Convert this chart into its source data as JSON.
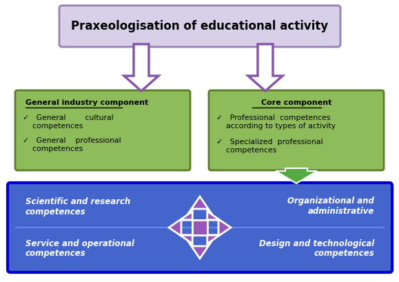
{
  "title_text": "Praxeologisation of educational activity",
  "title_box_color": "#d8d0e8",
  "title_box_edge": "#9980b0",
  "left_box_title": "General industry component",
  "right_box_title": "Core component",
  "green_box_fill": "#8fbc5a",
  "green_box_edge": "#5a7a2a",
  "bottom_box_fill": "#4466cc",
  "bottom_box_edge": "#0000cc",
  "bottom_texts": [
    "Scientific and research\ncompetences",
    "Organizational and\nadministrative",
    "Service and operational\ncompetences",
    "Design and technological\ncompetences"
  ],
  "left_bullets": [
    "✓   General        cultural\n    competences",
    "✓   General    professional\n    competences"
  ],
  "right_bullets": [
    "✓   Professional  competences\n    according to types of activity",
    "✓   Specialized  professional\n    competences"
  ],
  "arrow_color_purple": "#8855aa",
  "arrow_color_green": "#55aa44",
  "bg_color": "#ffffff"
}
